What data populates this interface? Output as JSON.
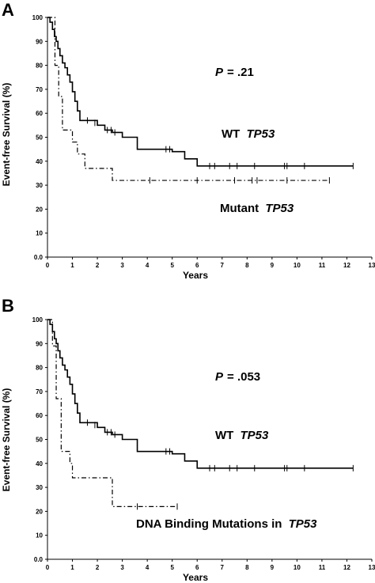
{
  "chart_data": [
    {
      "type": "line",
      "panel_label": "A",
      "xlabel": "Years",
      "ylabel": "Event-free Survival (%)",
      "xlim": [
        0,
        13
      ],
      "ylim": [
        0,
        100
      ],
      "x_ticks": [
        "0",
        "1",
        "2",
        "3",
        "4",
        "5",
        "6",
        "7",
        "8",
        "9",
        "10",
        "11",
        "12",
        "13"
      ],
      "y_ticks": [
        "0.0",
        "10",
        "20",
        "30",
        "40",
        "50",
        "60",
        "70",
        "80",
        "90",
        "100"
      ],
      "p_label": "P",
      "p_value": "= .21",
      "annotations": [
        {
          "text": "WT ",
          "italic_text": "TP53"
        },
        {
          "text": "Mutant ",
          "italic_text": "TP53"
        }
      ],
      "series": [
        {
          "style": "solid",
          "x": [
            0,
            0.1,
            0.2,
            0.28,
            0.35,
            0.42,
            0.5,
            0.6,
            0.7,
            0.8,
            0.9,
            1.0,
            1.1,
            1.2,
            1.3,
            1.4,
            1.6,
            2.0,
            2.3,
            2.6,
            3.0,
            3.6,
            4.4,
            5.0,
            5.5,
            6.0,
            12.25
          ],
          "y": [
            100,
            98,
            95,
            92,
            90,
            87,
            84,
            81,
            79,
            76,
            73,
            69,
            65,
            61,
            57,
            57,
            57,
            55,
            53,
            52,
            50,
            45,
            45,
            44,
            41,
            38,
            38
          ],
          "censored_x": [
            1.6,
            1.9,
            2.4,
            2.55,
            2.7,
            4.75,
            4.9,
            6.5,
            6.7,
            7.3,
            7.6,
            8.3,
            9.5,
            9.6,
            10.3,
            12.25
          ],
          "censored_y": [
            57,
            56,
            53,
            53,
            52,
            45,
            45,
            38,
            38,
            38,
            38,
            38,
            38,
            38,
            38,
            38
          ]
        },
        {
          "style": "dashdot",
          "x": [
            0,
            0.3,
            0.45,
            0.6,
            1.0,
            1.2,
            1.5,
            2.5,
            2.6,
            11.3
          ],
          "y": [
            100,
            80,
            67,
            53,
            48,
            43,
            37,
            37,
            32,
            32
          ],
          "censored_x": [
            4.1,
            6.0,
            7.5,
            8.2,
            8.4,
            9.6,
            11.3
          ],
          "censored_y": [
            32,
            32,
            32,
            32,
            32,
            32,
            32
          ]
        }
      ]
    },
    {
      "type": "line",
      "panel_label": "B",
      "xlabel": "Years",
      "ylabel": "Event-free Survival (%)",
      "xlim": [
        0,
        13
      ],
      "ylim": [
        0,
        100
      ],
      "x_ticks": [
        "0",
        "1",
        "2",
        "3",
        "4",
        "5",
        "6",
        "7",
        "8",
        "9",
        "10",
        "11",
        "12",
        "13"
      ],
      "y_ticks": [
        "0.0",
        "10",
        "20",
        "30",
        "40",
        "50",
        "60",
        "70",
        "80",
        "90",
        "100"
      ],
      "p_label": "P",
      "p_value": "= .053",
      "annotations": [
        {
          "text": "WT ",
          "italic_text": "TP53"
        },
        {
          "text": "DNA Binding Mutations in ",
          "italic_text": "TP53"
        }
      ],
      "series": [
        {
          "style": "solid",
          "x": [
            0,
            0.1,
            0.2,
            0.28,
            0.35,
            0.42,
            0.5,
            0.6,
            0.7,
            0.8,
            0.9,
            1.0,
            1.1,
            1.2,
            1.3,
            1.4,
            1.6,
            2.0,
            2.3,
            2.6,
            3.0,
            3.6,
            4.4,
            5.0,
            5.5,
            6.0,
            12.25
          ],
          "y": [
            100,
            98,
            95,
            92,
            90,
            87,
            84,
            81,
            79,
            76,
            73,
            69,
            65,
            61,
            57,
            57,
            57,
            55,
            53,
            52,
            50,
            45,
            45,
            44,
            41,
            38,
            38
          ],
          "censored_x": [
            1.6,
            1.9,
            2.4,
            2.55,
            2.7,
            4.75,
            4.9,
            6.5,
            6.7,
            7.3,
            7.6,
            8.3,
            9.5,
            9.6,
            10.3,
            12.25
          ],
          "censored_y": [
            57,
            56,
            53,
            53,
            52,
            45,
            45,
            38,
            38,
            38,
            38,
            38,
            38,
            38,
            38,
            38
          ]
        },
        {
          "style": "dashdot",
          "x": [
            0,
            0.2,
            0.35,
            0.55,
            0.9,
            1.0,
            2.5,
            2.6,
            5.2
          ],
          "y": [
            100,
            89,
            67,
            45,
            40,
            34,
            34,
            22,
            22
          ],
          "censored_x": [
            3.6,
            5.2
          ],
          "censored_y": [
            22,
            22
          ]
        }
      ]
    }
  ]
}
